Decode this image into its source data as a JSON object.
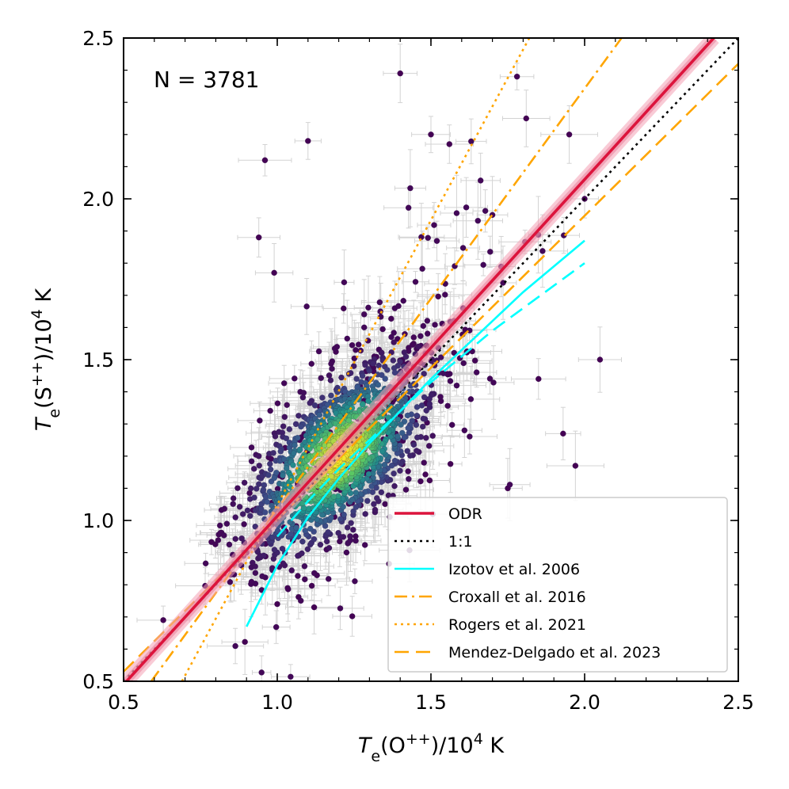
{
  "chart_data": {
    "type": "scatter",
    "xlabel": {
      "italic": "T",
      "sub": "e",
      "text": "(O",
      "sup": "++",
      "tail": ")/10",
      "exp": "4",
      "unit": " K"
    },
    "ylabel": {
      "italic": "T",
      "sub": "e",
      "text": "(S",
      "sup": "++",
      "tail": ")/10",
      "exp": "4",
      "unit": " K"
    },
    "xlim": [
      0.5,
      2.5
    ],
    "ylim": [
      0.5,
      2.5
    ],
    "x_ticks": [
      0.5,
      1.0,
      1.5,
      2.0,
      2.5
    ],
    "y_ticks": [
      0.5,
      1.0,
      1.5,
      2.0,
      2.5
    ],
    "x_tick_labels": [
      "0.5",
      "1.0",
      "1.5",
      "2.0",
      "2.5"
    ],
    "y_tick_labels": [
      "0.5",
      "1.0",
      "1.5",
      "2.0",
      "2.5"
    ],
    "annotation": "N = 3781",
    "scatter": {
      "count": 3781,
      "center": [
        1.2,
        1.2
      ],
      "colormap": "viridis",
      "errorbar_color": "#d3d3d3",
      "outliers": [
        [
          1.4,
          2.39
        ],
        [
          1.78,
          2.38
        ],
        [
          1.81,
          2.25
        ],
        [
          0.96,
          2.12
        ],
        [
          1.1,
          2.18
        ],
        [
          1.5,
          2.2
        ],
        [
          1.95,
          2.2
        ],
        [
          0.94,
          1.88
        ],
        [
          2.0,
          2.0
        ],
        [
          2.05,
          1.5
        ],
        [
          1.93,
          1.27
        ],
        [
          1.97,
          1.17
        ],
        [
          0.9,
          0.9
        ],
        [
          1.0,
          0.74
        ],
        [
          1.12,
          0.73
        ],
        [
          1.85,
          1.44
        ],
        [
          1.7,
          1.95
        ],
        [
          1.56,
          2.17
        ],
        [
          0.99,
          1.77
        ],
        [
          1.75,
          1.1
        ]
      ]
    },
    "series": [
      {
        "name": "ODR",
        "kind": "line",
        "color": "#dc143c",
        "dash": "solid",
        "band": true,
        "x": [
          0.5,
          2.42
        ],
        "y": [
          0.49,
          2.5
        ]
      },
      {
        "name": "1:1",
        "kind": "line",
        "color": "#000000",
        "dash": "dotted",
        "x": [
          0.5,
          2.5
        ],
        "y": [
          0.5,
          2.5
        ]
      },
      {
        "name": "Izotov et al. 2006",
        "kind": "curve",
        "color": "#00ffff",
        "dash": "solid",
        "x": [
          0.9,
          1.0,
          1.1,
          1.2,
          1.3,
          1.4,
          1.5,
          1.6,
          1.7,
          1.8,
          1.9,
          2.0
        ],
        "y": [
          0.67,
          0.86,
          1.01,
          1.13,
          1.24,
          1.34,
          1.44,
          1.53,
          1.62,
          1.71,
          1.79,
          1.87
        ]
      },
      {
        "name": "Croxall et al. 2016",
        "kind": "line",
        "color": "#ffa500",
        "dash": "dashdot",
        "x": [
          0.59,
          2.12
        ],
        "y": [
          0.5,
          2.5
        ]
      },
      {
        "name": "Rogers et al. 2021",
        "kind": "line",
        "color": "#ffa500",
        "dash": "dotted",
        "x": [
          0.69,
          1.82
        ],
        "y": [
          0.5,
          2.5
        ]
      },
      {
        "name": "Mendez-Delgado et al. 2023",
        "kind": "line",
        "color": "#ffa500",
        "dash": "dashed",
        "x": [
          0.5,
          2.5
        ],
        "y": [
          0.53,
          2.42
        ]
      }
    ],
    "extra_series": [
      {
        "kind": "curve",
        "color": "#00ffff",
        "dash": "dashed",
        "x": [
          1.0,
          1.1,
          1.2,
          1.3,
          1.4,
          1.5,
          1.6,
          1.7,
          1.8,
          1.9,
          2.0
        ],
        "y": [
          0.95,
          1.06,
          1.16,
          1.25,
          1.34,
          1.43,
          1.51,
          1.59,
          1.66,
          1.73,
          1.8
        ]
      }
    ],
    "legend": {
      "placement": "lower-right",
      "entries": [
        "ODR",
        "1:1",
        "Izotov et al. 2006",
        "Croxall et al. 2016",
        "Rogers et al. 2021",
        "Mendez-Delgado et al. 2023"
      ]
    },
    "grid": false
  }
}
